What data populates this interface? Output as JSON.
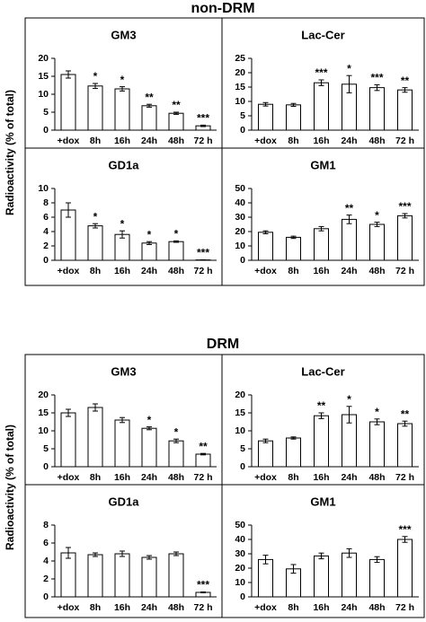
{
  "figure": {
    "sections": [
      {
        "title": "non-DRM",
        "ylabel": "Radioactivity (% of total)"
      },
      {
        "title": "DRM",
        "ylabel": "Radioactivity (% of total)"
      }
    ]
  },
  "chart_data": [
    {
      "type": "bar",
      "title": "GM3",
      "categories": [
        "+dox",
        "8h",
        "16h",
        "24h",
        "48h",
        "72 h"
      ],
      "values": [
        15.5,
        12.3,
        11.5,
        6.8,
        4.7,
        1.2
      ],
      "errors": [
        1,
        0.7,
        0.6,
        0.4,
        0.3,
        0.2
      ],
      "annotations": [
        null,
        "*",
        "*",
        "**",
        "**",
        "***"
      ],
      "ylim": [
        0,
        20
      ],
      "yticks": [
        0,
        5,
        10,
        15,
        20
      ],
      "color": "#ffffff"
    },
    {
      "type": "bar",
      "title": "Lac-Cer",
      "categories": [
        "+dox",
        "8h",
        "16h",
        "24h",
        "48h",
        "72 h"
      ],
      "values": [
        9,
        8.8,
        16.5,
        16,
        14.8,
        14
      ],
      "errors": [
        0.6,
        0.5,
        1,
        3,
        1,
        0.8
      ],
      "annotations": [
        null,
        null,
        "***",
        "*",
        "***",
        "**"
      ],
      "ylim": [
        0,
        25
      ],
      "yticks": [
        0,
        5,
        10,
        15,
        20,
        25
      ],
      "color": "#ffffff"
    },
    {
      "type": "bar",
      "title": "GD1a",
      "categories": [
        "+dox",
        "8h",
        "16h",
        "24h",
        "48h",
        "72 h"
      ],
      "values": [
        7,
        4.8,
        3.6,
        2.4,
        2.6,
        0.05
      ],
      "errors": [
        1,
        0.3,
        0.5,
        0.2,
        0.1,
        0.02
      ],
      "annotations": [
        null,
        "*",
        "*",
        "*",
        "*",
        "***"
      ],
      "ylim": [
        0,
        10
      ],
      "yticks": [
        0,
        2,
        4,
        6,
        8,
        10
      ],
      "color": "#ffffff"
    },
    {
      "type": "bar",
      "title": "GM1",
      "categories": [
        "+dox",
        "8h",
        "16h",
        "24h",
        "48h",
        "72 h"
      ],
      "values": [
        19.5,
        16,
        22,
        28.5,
        25,
        31
      ],
      "errors": [
        1,
        0.8,
        1.5,
        3,
        1.5,
        1.5
      ],
      "annotations": [
        null,
        null,
        null,
        "**",
        "*",
        "***"
      ],
      "ylim": [
        0,
        50
      ],
      "yticks": [
        0,
        10,
        20,
        30,
        40,
        50
      ],
      "color": "#ffffff"
    },
    {
      "type": "bar",
      "title": "GM3",
      "categories": [
        "+dox",
        "8h",
        "16h",
        "24h",
        "48h",
        "72 h"
      ],
      "values": [
        15,
        16.5,
        13,
        10.7,
        7.2,
        3.5
      ],
      "errors": [
        1,
        1,
        0.7,
        0.4,
        0.5,
        0.2
      ],
      "annotations": [
        null,
        null,
        null,
        "*",
        "*",
        "**"
      ],
      "ylim": [
        0,
        20
      ],
      "yticks": [
        0,
        5,
        10,
        15,
        20
      ],
      "color": "#ffffff"
    },
    {
      "type": "bar",
      "title": "Lac-Cer",
      "categories": [
        "+dox",
        "8h",
        "16h",
        "24h",
        "48h",
        "72 h"
      ],
      "values": [
        7.2,
        8,
        14.2,
        14.5,
        12.5,
        12
      ],
      "errors": [
        0.5,
        0.3,
        0.8,
        2.3,
        0.8,
        0.7
      ],
      "annotations": [
        null,
        null,
        "**",
        "*",
        "*",
        "**"
      ],
      "ylim": [
        0,
        20
      ],
      "yticks": [
        0,
        5,
        10,
        15,
        20
      ],
      "color": "#ffffff"
    },
    {
      "type": "bar",
      "title": "GD1a",
      "categories": [
        "+dox",
        "8h",
        "16h",
        "24h",
        "48h",
        "72 h"
      ],
      "values": [
        4.9,
        4.7,
        4.8,
        4.4,
        4.8,
        0.5
      ],
      "errors": [
        0.6,
        0.2,
        0.3,
        0.2,
        0.2,
        0.05
      ],
      "annotations": [
        null,
        null,
        null,
        null,
        null,
        "***"
      ],
      "ylim": [
        0,
        8
      ],
      "yticks": [
        0,
        2,
        4,
        6,
        8
      ],
      "color": "#ffffff"
    },
    {
      "type": "bar",
      "title": "GM1",
      "categories": [
        "+dox",
        "8h",
        "16h",
        "24h",
        "48h",
        "72 h"
      ],
      "values": [
        26,
        19.5,
        28.5,
        30.5,
        26,
        40
      ],
      "errors": [
        3,
        3,
        2,
        3,
        2,
        2
      ],
      "annotations": [
        null,
        null,
        null,
        null,
        null,
        "***"
      ],
      "ylim": [
        0,
        50
      ],
      "yticks": [
        0,
        10,
        20,
        30,
        40,
        50
      ],
      "color": "#ffffff"
    }
  ]
}
